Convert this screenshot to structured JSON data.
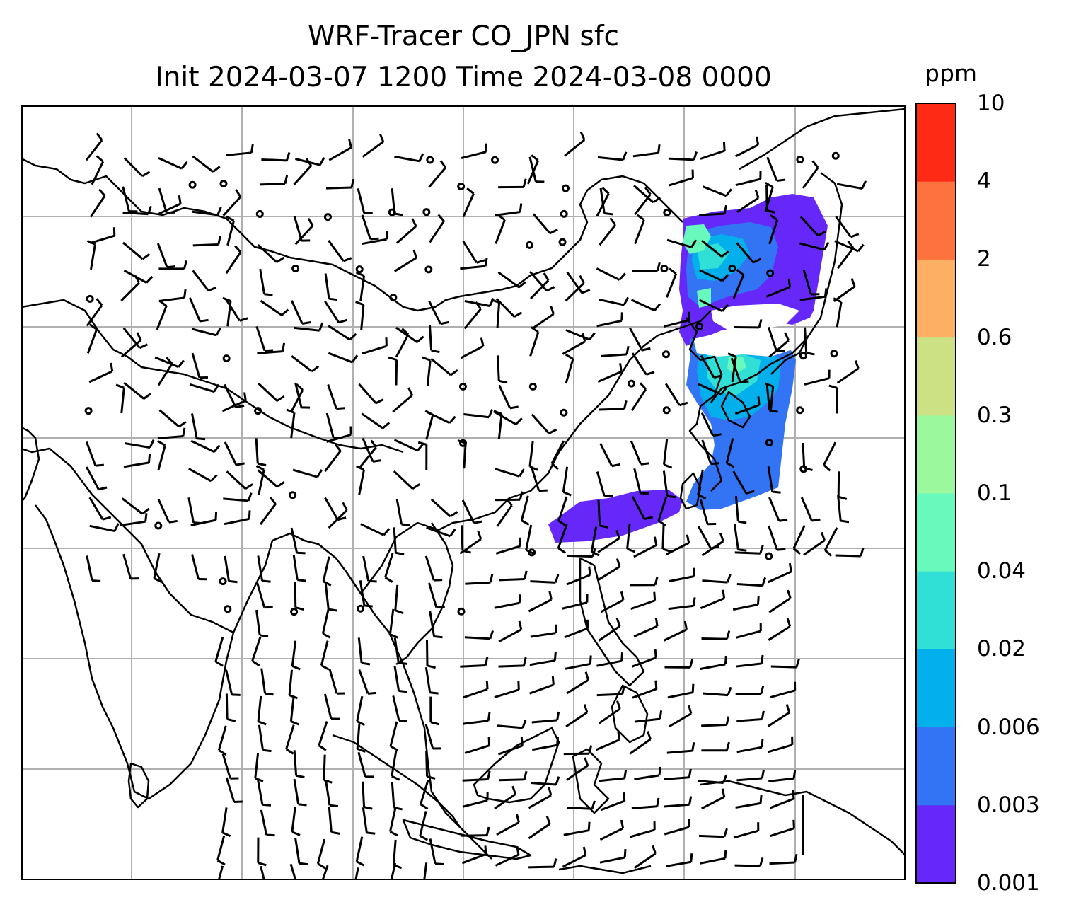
{
  "title": {
    "line1": "WRF-Tracer CO_JPN sfc",
    "line2": "Init 2024-03-07 1200 Time 2024-03-08 0000"
  },
  "colorbar": {
    "unit": "ppm",
    "levels": [
      {
        "label": "0.001",
        "color": "#6528f9"
      },
      {
        "label": "0.003",
        "color": "#3274f3"
      },
      {
        "label": "0.006",
        "color": "#04b0eb"
      },
      {
        "label": "0.02",
        "color": "#30dfd5"
      },
      {
        "label": "0.04",
        "color": "#68f9bd"
      },
      {
        "label": "0.1",
        "color": "#9cf89c"
      },
      {
        "label": "0.3",
        "color": "#cce184"
      },
      {
        "label": "0.6",
        "color": "#fdb063"
      },
      {
        "label": "2",
        "color": "#fe723d"
      },
      {
        "label": "4",
        "color": "#fe2a15"
      },
      {
        "label": "10",
        "color": ""
      }
    ]
  },
  "map": {
    "gridline_color": "#b0b0b0",
    "coastline_color": "#000000",
    "barb_color": "#000000"
  }
}
